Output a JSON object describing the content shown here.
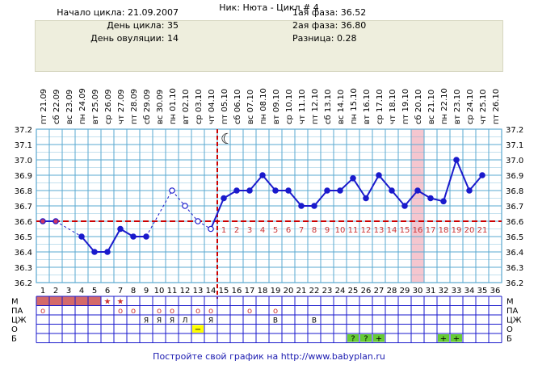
{
  "title": "Ник: Нюта - Цикл # 4",
  "info": {
    "left": [
      {
        "label": "Начало цикла:",
        "value": "21.09.2007"
      },
      {
        "label": "День цикла:",
        "value": "35"
      },
      {
        "label": "День овуляции:",
        "value": "14"
      }
    ],
    "right": [
      {
        "label": "1ая фаза:",
        "value": "36.52"
      },
      {
        "label": "2ая фаза:",
        "value": "36.80"
      },
      {
        "label": "Разница:",
        "value": "0.28"
      }
    ]
  },
  "footer": "Постройте свой график на http://www.babyplan.ru",
  "colors": {
    "grid": "#5aa8d0",
    "line": "#1a1acc",
    "coverline": "#cc0000",
    "ovulation": "#cc0000",
    "highlight": "#f5c6cf",
    "menses": "#d46a6a",
    "phase_number": "#cc3333",
    "o_mark": "#ffff00",
    "b_mark": "#66cc33"
  },
  "chart_data": {
    "type": "line",
    "days": [
      1,
      2,
      3,
      4,
      5,
      6,
      7,
      8,
      9,
      10,
      11,
      12,
      13,
      14,
      15,
      16,
      17,
      18,
      19,
      20,
      21,
      22,
      23,
      24,
      25,
      26,
      27,
      28,
      29,
      30,
      31,
      32,
      33,
      34,
      35,
      36
    ],
    "dates": [
      "21.09",
      "22.09",
      "23.09",
      "24.09",
      "25.09",
      "26.09",
      "27.09",
      "28.09",
      "29.09",
      "30.09",
      "01.10",
      "02.10",
      "03.10",
      "04.10",
      "05.10",
      "06.10",
      "07.10",
      "08.10",
      "09.10",
      "10.10",
      "11.10",
      "12.10",
      "13.10",
      "14.10",
      "15.10",
      "16.10",
      "17.10",
      "18.10",
      "19.10",
      "20.10",
      "21.10",
      "22.10",
      "23.10",
      "24.10",
      "25.10",
      "26.10"
    ],
    "weekdays": [
      "пт",
      "сб",
      "вс",
      "пн",
      "вт",
      "ср",
      "чт",
      "пт",
      "сб",
      "вс",
      "пн",
      "вт",
      "ср",
      "чт",
      "пт",
      "сб",
      "вс",
      "пн",
      "вт",
      "ср",
      "чт",
      "пт",
      "сб",
      "вс",
      "пн",
      "вт",
      "ср",
      "чт",
      "пт",
      "сб",
      "вс",
      "пн",
      "вт",
      "ср",
      "чт",
      "пт"
    ],
    "temps": [
      36.6,
      36.6,
      null,
      36.5,
      36.4,
      36.4,
      36.55,
      36.5,
      36.5,
      null,
      36.8,
      36.7,
      36.6,
      36.55,
      36.75,
      36.8,
      36.8,
      36.9,
      36.8,
      36.8,
      36.7,
      36.7,
      36.8,
      36.8,
      36.88,
      36.75,
      36.9,
      36.8,
      36.7,
      36.8,
      36.75,
      36.73,
      37.0,
      36.8,
      36.9,
      null
    ],
    "dashed_segments": [
      [
        2,
        4
      ],
      [
        9,
        11
      ],
      [
        11,
        12
      ],
      [
        12,
        13
      ],
      [
        13,
        14
      ]
    ],
    "red_points": [
      1,
      2
    ],
    "open_points": [
      11,
      12,
      13,
      14
    ],
    "coverline": 36.6,
    "ovulation_day": 14,
    "highlight_day": 30,
    "phase2_numbers": [
      "1",
      "2",
      "3",
      "4",
      "5",
      "6",
      "7",
      "8",
      "9",
      "10",
      "11",
      "12",
      "13",
      "14",
      "15",
      "16",
      "17",
      "18",
      "19",
      "20",
      "21"
    ],
    "ylim": [
      36.2,
      37.2
    ],
    "yticks": [
      "36.2",
      "36.3",
      "36.4",
      "36.5",
      "36.6",
      "36.7",
      "36.8",
      "36.9",
      "37.0",
      "37.1",
      "37.2"
    ],
    "moon_icon": "crescent-moon-icon"
  },
  "rows": [
    {
      "label": "М",
      "items": [
        {
          "day": 1,
          "kind": "bar"
        },
        {
          "day": 2,
          "kind": "bar"
        },
        {
          "day": 3,
          "kind": "bar"
        },
        {
          "day": 4,
          "kind": "bar"
        },
        {
          "day": 5,
          "kind": "bar"
        },
        {
          "day": 6,
          "kind": "star",
          "text": "★"
        },
        {
          "day": 7,
          "kind": "star",
          "text": "★"
        }
      ]
    },
    {
      "label": "ПА",
      "items": [
        {
          "day": 1,
          "kind": "o",
          "text": "о"
        },
        {
          "day": 7,
          "kind": "o",
          "text": "о"
        },
        {
          "day": 8,
          "kind": "o",
          "text": "о"
        },
        {
          "day": 10,
          "kind": "o",
          "text": "о"
        },
        {
          "day": 11,
          "kind": "o",
          "text": "о"
        },
        {
          "day": 13,
          "kind": "o",
          "text": "о"
        },
        {
          "day": 14,
          "kind": "o",
          "text": "о"
        },
        {
          "day": 17,
          "kind": "o",
          "text": "о"
        },
        {
          "day": 19,
          "kind": "o",
          "text": "о"
        }
      ]
    },
    {
      "label": "ЦЖ",
      "items": [
        {
          "day": 9,
          "kind": "t",
          "text": "Я"
        },
        {
          "day": 10,
          "kind": "t",
          "text": "Я"
        },
        {
          "day": 11,
          "kind": "t",
          "text": "Я"
        },
        {
          "day": 12,
          "kind": "t",
          "text": "Л"
        },
        {
          "day": 14,
          "kind": "t",
          "text": "Я"
        },
        {
          "day": 19,
          "kind": "t",
          "text": "В"
        },
        {
          "day": 22,
          "kind": "t",
          "text": "В"
        }
      ]
    },
    {
      "label": "О",
      "items": [
        {
          "day": 13,
          "kind": "yellow",
          "text": "−"
        }
      ]
    },
    {
      "label": "Б",
      "items": [
        {
          "day": 25,
          "kind": "green",
          "text": "?"
        },
        {
          "day": 26,
          "kind": "green",
          "text": "?"
        },
        {
          "day": 27,
          "kind": "green",
          "text": "+"
        },
        {
          "day": 32,
          "kind": "green",
          "text": "+"
        },
        {
          "day": 33,
          "kind": "green",
          "text": "+"
        }
      ]
    }
  ]
}
